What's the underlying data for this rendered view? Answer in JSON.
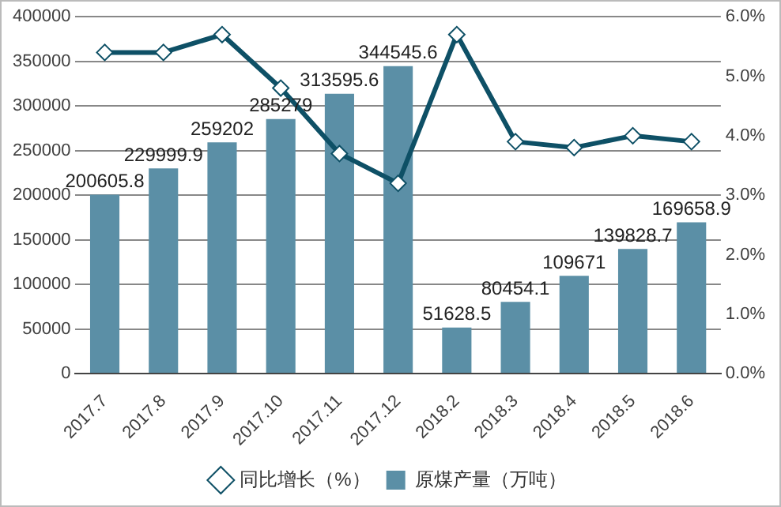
{
  "chart_data": {
    "type": "bar",
    "categories": [
      "2017.7",
      "2017.8",
      "2017.9",
      "2017.10",
      "2017.11",
      "2017.12",
      "2018.2",
      "2018.3",
      "2018.4",
      "2018.5",
      "2018.6"
    ],
    "series": [
      {
        "name": "原煤产量（万吨）",
        "color": "#5b8fa6",
        "values": [
          200605.8,
          229999.9,
          259202,
          285279,
          313595.6,
          344545.6,
          51628.5,
          80454.1,
          109671,
          139828.7,
          169658.9
        ],
        "value_labels": [
          "200605.8",
          "229999.9",
          "259202",
          "285279",
          "313595.6",
          "344545.6",
          "51628.5",
          "80454.1",
          "109671",
          "139828.7",
          "169658.9"
        ]
      },
      {
        "name": "同比增长（%）",
        "type": "line",
        "axis": "y2",
        "color": "#0e5066",
        "values": [
          5.4,
          5.4,
          5.7,
          4.8,
          3.7,
          3.2,
          5.7,
          3.9,
          3.8,
          4.0,
          3.9
        ]
      }
    ],
    "ylim": [
      0,
      400000
    ],
    "yticks": [
      0,
      50000,
      100000,
      150000,
      200000,
      250000,
      300000,
      350000,
      400000
    ],
    "y2lim": [
      0,
      6
    ],
    "y2ticks": [
      {
        "value": 0,
        "label": "0.0%"
      },
      {
        "value": 1,
        "label": "1.0%"
      },
      {
        "value": 2,
        "label": "2.0%"
      },
      {
        "value": 3,
        "label": "3.0%"
      },
      {
        "value": 4,
        "label": "4.0%"
      },
      {
        "value": 5,
        "label": "5.0%"
      },
      {
        "value": 6,
        "label": "6.0%"
      }
    ],
    "grid": "y",
    "legend": "bottom",
    "marker": "diamond",
    "line_style": "solid"
  }
}
